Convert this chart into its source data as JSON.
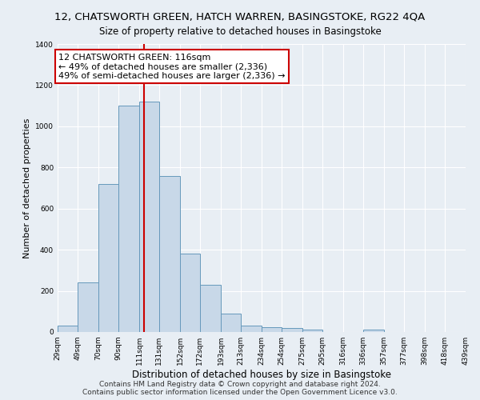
{
  "title": "12, CHATSWORTH GREEN, HATCH WARREN, BASINGSTOKE, RG22 4QA",
  "subtitle": "Size of property relative to detached houses in Basingstoke",
  "xlabel": "Distribution of detached houses by size in Basingstoke",
  "ylabel": "Number of detached properties",
  "bar_edges": [
    29,
    49,
    70,
    90,
    111,
    131,
    152,
    172,
    193,
    213,
    234,
    254,
    275,
    295,
    316,
    336,
    357,
    377,
    398,
    418,
    439
  ],
  "bar_heights": [
    30,
    240,
    720,
    1100,
    1120,
    760,
    380,
    230,
    90,
    30,
    25,
    20,
    10,
    0,
    0,
    10,
    0,
    0,
    0,
    0
  ],
  "bar_color": "#c8d8e8",
  "bar_edge_color": "#6699bb",
  "vline_x": 116,
  "vline_color": "#cc0000",
  "annotation_line1": "12 CHATSWORTH GREEN: 116sqm",
  "annotation_line2": "← 49% of detached houses are smaller (2,336)",
  "annotation_line3": "49% of semi-detached houses are larger (2,336) →",
  "annotation_box_color": "#ffffff",
  "annotation_box_edge": "#cc0000",
  "tick_labels": [
    "29sqm",
    "49sqm",
    "70sqm",
    "90sqm",
    "111sqm",
    "131sqm",
    "152sqm",
    "172sqm",
    "193sqm",
    "213sqm",
    "234sqm",
    "254sqm",
    "275sqm",
    "295sqm",
    "316sqm",
    "336sqm",
    "357sqm",
    "377sqm",
    "398sqm",
    "418sqm",
    "439sqm"
  ],
  "ylim": [
    0,
    1400
  ],
  "yticks": [
    0,
    200,
    400,
    600,
    800,
    1000,
    1200,
    1400
  ],
  "footer1": "Contains HM Land Registry data © Crown copyright and database right 2024.",
  "footer2": "Contains public sector information licensed under the Open Government Licence v3.0.",
  "background_color": "#e8eef4",
  "plot_background": "#e8eef4",
  "title_fontsize": 9.5,
  "subtitle_fontsize": 8.5,
  "annotation_fontsize": 8.0,
  "footer_fontsize": 6.5,
  "xlabel_fontsize": 8.5,
  "ylabel_fontsize": 8.0
}
